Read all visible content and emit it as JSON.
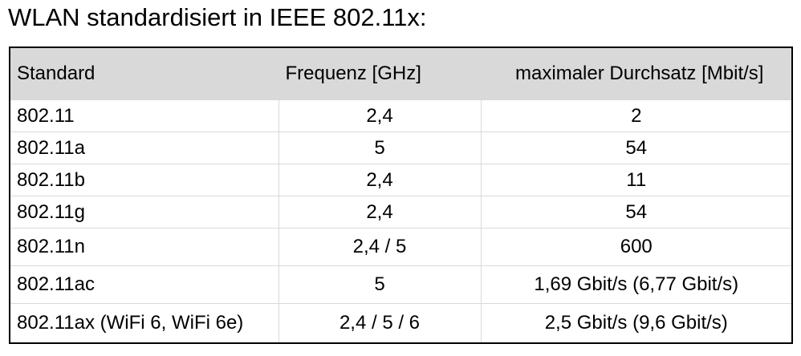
{
  "title": "WLAN standardisiert in IEEE 802.11x:",
  "table": {
    "headers": [
      "Standard",
      "Frequenz [GHz]",
      "maximaler Durchsatz [Mbit/s]"
    ],
    "rows": [
      [
        "802.11",
        "2,4",
        "2"
      ],
      [
        "802.11a",
        "5",
        "54"
      ],
      [
        "802.11b",
        "2,4",
        "11"
      ],
      [
        "802.11g",
        "2,4",
        "54"
      ],
      [
        "802.11n",
        "2,4 / 5",
        "600"
      ],
      [
        "802.11ac",
        "5",
        "1,69 Gbit/s (6,77 Gbit/s)"
      ],
      [
        "802.11ax (WiFi 6, WiFi 6e)",
        "2,4 / 5 / 6",
        "2,5 Gbit/s (9,6 Gbit/s)"
      ]
    ]
  }
}
